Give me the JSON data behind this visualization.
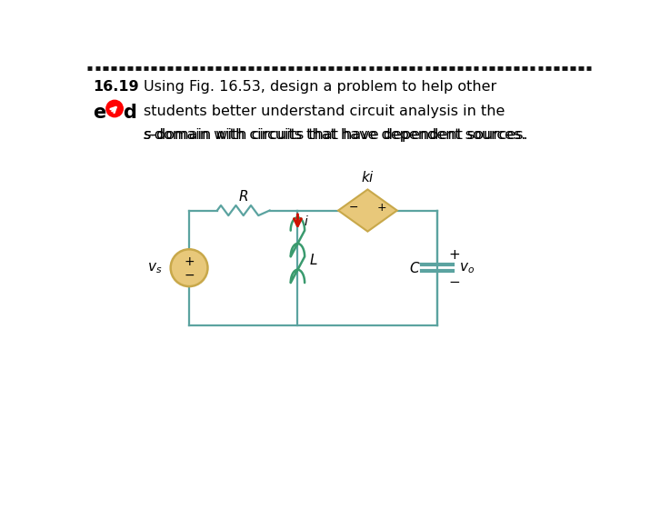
{
  "bg_color": "#ffffff",
  "text_color": "#000000",
  "wire_color": "#5ba3a0",
  "inductor_color": "#3a9a6e",
  "source_fill": "#e8c87a",
  "source_edge": "#c8a84a",
  "dependent_fill": "#e8c87a",
  "dependent_edge": "#c8a84a",
  "arrow_color": "#cc1100",
  "dash_color": "#111111",
  "line1_bold": "16.19",
  "line1_rest": " Using Fig. 16.53, design a problem to help other",
  "line2_rest": " students better understand circuit analysis in the",
  "line3": "      s-domain with circuits that have dependent sources."
}
